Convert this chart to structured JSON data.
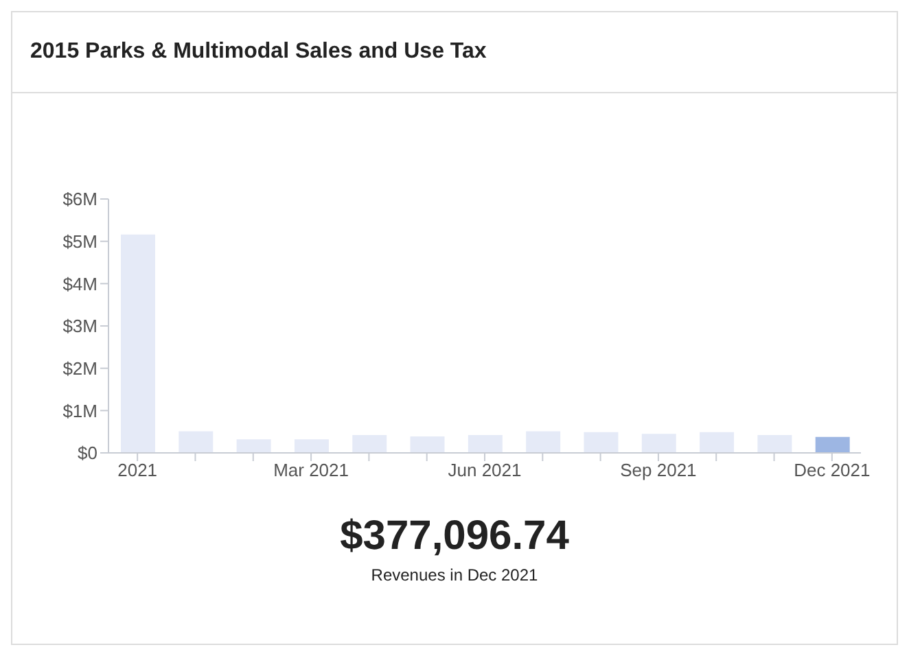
{
  "chart_data": {
    "type": "bar",
    "title": "2015 Parks & Multimodal Sales and Use Tax",
    "categories": [
      "2021",
      null,
      null,
      "Mar 2021",
      null,
      null,
      "Jun 2021",
      null,
      null,
      "Sep 2021",
      null,
      null,
      "Dec 2021"
    ],
    "values": [
      5160000,
      510000,
      320000,
      320000,
      420000,
      390000,
      420000,
      510000,
      490000,
      450000,
      490000,
      420000,
      377096.74
    ],
    "colors": [
      "#e5eaf7",
      "#e5eaf7",
      "#e5eaf7",
      "#e5eaf7",
      "#e5eaf7",
      "#e5eaf7",
      "#e5eaf7",
      "#e5eaf7",
      "#e5eaf7",
      "#e5eaf7",
      "#e5eaf7",
      "#e5eaf7",
      "#9db6e3"
    ],
    "ylim": [
      0,
      6000000
    ],
    "yticks": [
      {
        "value": 0,
        "label": "$0"
      },
      {
        "value": 1000000,
        "label": "$1M"
      },
      {
        "value": 2000000,
        "label": "$2M"
      },
      {
        "value": 3000000,
        "label": "$3M"
      },
      {
        "value": 4000000,
        "label": "$4M"
      },
      {
        "value": 5000000,
        "label": "$5M"
      },
      {
        "value": 6000000,
        "label": "$6M"
      }
    ],
    "grid": false,
    "legend": false,
    "annotations": [
      "$377,096.74",
      "Revenues in Dec 2021"
    ]
  }
}
